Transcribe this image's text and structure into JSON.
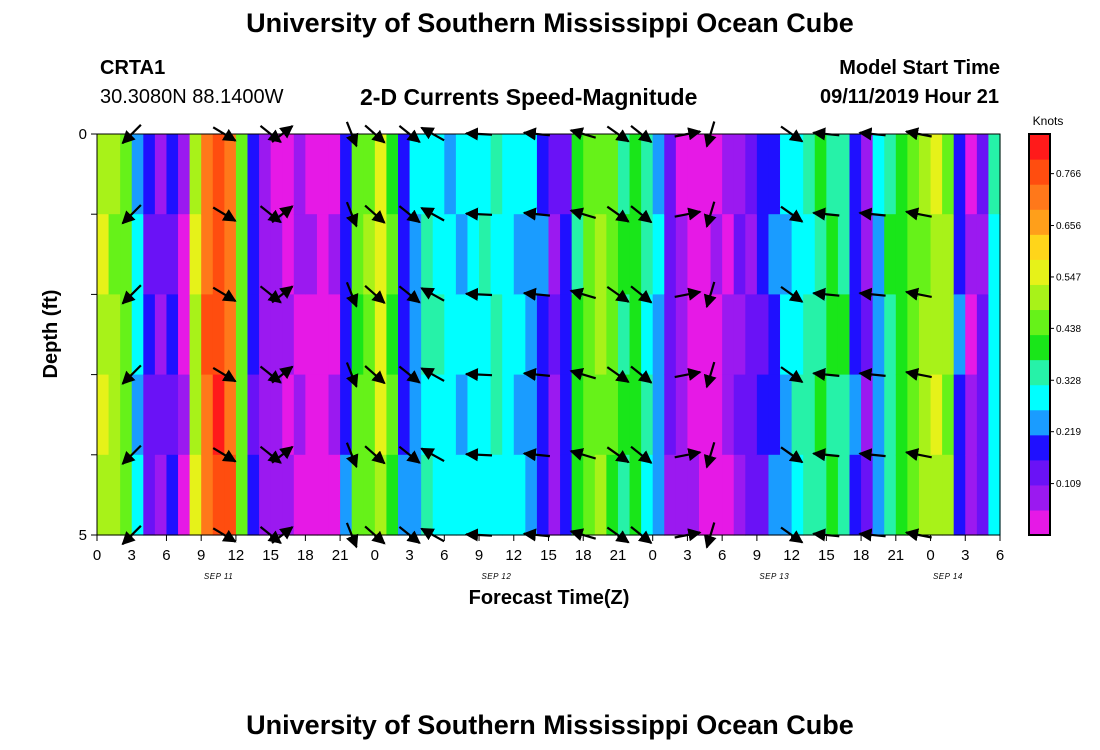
{
  "page": {
    "title_top": "University of Southern Mississippi Ocean Cube",
    "title_bottom": "University of Southern Mississippi Ocean Cube",
    "station_id": "CRTA1",
    "station_coords": "30.3080N 88.1400W",
    "chart_title": "2-D Currents Speed-Magnitude",
    "model_start_label": "Model Start Time",
    "model_start_value": "09/11/2019 Hour 21"
  },
  "colors": {
    "scale": [
      "#e619e6",
      "#9b19f0",
      "#6a12f6",
      "#1f10ff",
      "#1a9cff",
      "#00ffff",
      "#26f2a8",
      "#19e619",
      "#66f219",
      "#a8f219",
      "#e6f219",
      "#ffd51a",
      "#ff9f1a",
      "#ff781a",
      "#ff4d0f",
      "#ff1a1a"
    ]
  },
  "chart_data": {
    "type": "heatmap",
    "title": "2-D Currents Speed-Magnitude",
    "xlabel": "Forecast Time(Z)",
    "ylabel": "Depth (ft)",
    "colorbar_label": "Knots",
    "colorbar_ticks": [
      "0.766",
      "0.656",
      "0.547",
      "0.438",
      "0.328",
      "0.219",
      "0.109"
    ],
    "colorbar_range": [
      0.0,
      0.85
    ],
    "y_ticks": [
      "0",
      "5"
    ],
    "y_range": [
      0,
      5
    ],
    "x_tick_labels": [
      "0",
      "3",
      "6",
      "9",
      "12",
      "15",
      "18",
      "21",
      "0",
      "3",
      "6",
      "9",
      "12",
      "15",
      "18",
      "21",
      "0",
      "3",
      "6",
      "9",
      "12",
      "15",
      "18",
      "21",
      "0",
      "3",
      "6"
    ],
    "x_range_hours": [
      0,
      78
    ],
    "date_labels": [
      {
        "text": "SEP 11",
        "hour": 10.5
      },
      {
        "text": "SEP 12",
        "hour": 34.5
      },
      {
        "text": "SEP 13",
        "hour": 58.5
      },
      {
        "text": "SEP 14",
        "hour": 73.5
      }
    ],
    "speed_by_hour": [
      0.52,
      0.5,
      0.45,
      0.27,
      0.15,
      0.1,
      0.16,
      0.05,
      0.53,
      0.72,
      0.78,
      0.73,
      0.45,
      0.18,
      0.08,
      0.07,
      0.05,
      0.06,
      0.04,
      0.02,
      0.05,
      0.2,
      0.44,
      0.46,
      0.55,
      0.42,
      0.2,
      0.25,
      0.32,
      0.3,
      0.28,
      0.27,
      0.29,
      0.3,
      0.33,
      0.29,
      0.27,
      0.25,
      0.2,
      0.1,
      0.18,
      0.39,
      0.45,
      0.48,
      0.44,
      0.37,
      0.4,
      0.32,
      0.25,
      0.12,
      0.07,
      0.03,
      0.01,
      0.03,
      0.06,
      0.1,
      0.13,
      0.17,
      0.21,
      0.26,
      0.3,
      0.34,
      0.37,
      0.38,
      0.35,
      0.2,
      0.1,
      0.25,
      0.35,
      0.4,
      0.45,
      0.5,
      0.52,
      0.48,
      0.2,
      0.06,
      0.12,
      0.3
    ],
    "arrow_depths": [
      0,
      1,
      2,
      3,
      4,
      5
    ],
    "arrows_by_hour": [
      {
        "hour": 3,
        "u": -1,
        "v": -1
      },
      {
        "hour": 11,
        "u": 1,
        "v": -0.6
      },
      {
        "hour": 15,
        "u": 1,
        "v": -0.8
      },
      {
        "hour": 16,
        "u": 0.9,
        "v": 0.7
      },
      {
        "hour": 22,
        "u": 0.4,
        "v": -1
      },
      {
        "hour": 24,
        "u": 0.8,
        "v": -0.7
      },
      {
        "hour": 27,
        "u": 1,
        "v": -0.8
      },
      {
        "hour": 29,
        "u": -0.9,
        "v": 0.5
      },
      {
        "hour": 33,
        "u": -1,
        "v": 0.05
      },
      {
        "hour": 38,
        "u": -1,
        "v": 0.1
      },
      {
        "hour": 42,
        "u": -1,
        "v": 0.3
      },
      {
        "hour": 45,
        "u": 1,
        "v": -0.7
      },
      {
        "hour": 47,
        "u": 1,
        "v": -0.8
      },
      {
        "hour": 51,
        "u": 1,
        "v": 0.2
      },
      {
        "hour": 53,
        "u": -0.3,
        "v": -1
      },
      {
        "hour": 60,
        "u": 1,
        "v": -0.7
      },
      {
        "hour": 63,
        "u": -1,
        "v": 0.1
      },
      {
        "hour": 67,
        "u": -1,
        "v": 0.1
      },
      {
        "hour": 71,
        "u": -1,
        "v": 0.2
      }
    ]
  }
}
